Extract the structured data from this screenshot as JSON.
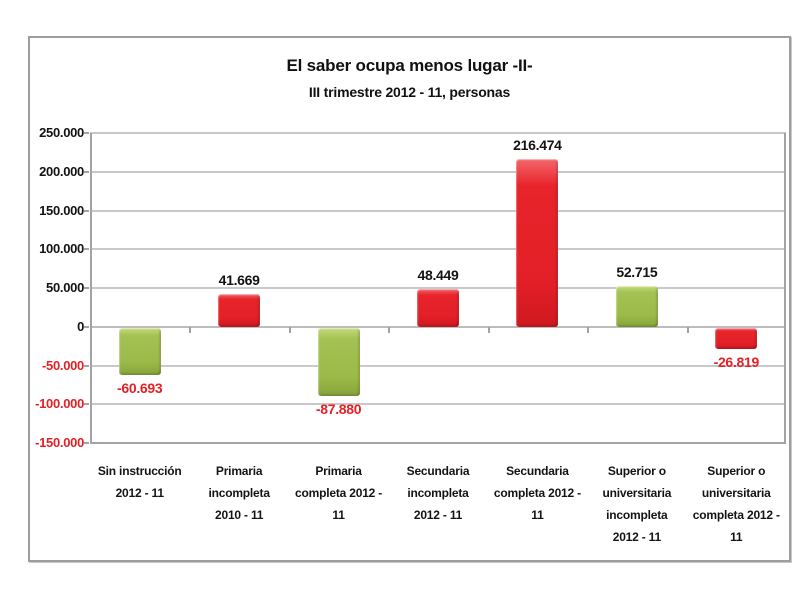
{
  "chart_data": {
    "type": "bar",
    "title": "El saber ocupa menos lugar -II-",
    "subtitle": "III trimestre 2012 - 11, personas",
    "categories": [
      "Sin instrucción 2012 - 11",
      "Primaria incompleta 2010 - 11",
      "Primaria completa 2012 - 11",
      "Secundaria incompleta 2012 - 11",
      "Secundaria completa 2012 - 11",
      "Superior o universitaria incompleta 2012 - 11",
      "Superior o universitaria completa 2012 - 11"
    ],
    "category_label_lines": [
      [
        "Sin instrucción",
        "2012 - 11"
      ],
      [
        "Primaria",
        "incompleta",
        "2010 - 11"
      ],
      [
        "Primaria",
        "completa 2012 -",
        "11"
      ],
      [
        "Secundaria",
        "incompleta",
        "2012 - 11"
      ],
      [
        "Secundaria",
        "completa 2012 -",
        "11"
      ],
      [
        "Superior o",
        "universitaria",
        "incompleta",
        "2012 - 11"
      ],
      [
        "Superior o",
        "universitaria",
        "completa 2012 -",
        "11"
      ]
    ],
    "values": [
      -60693,
      41669,
      -87880,
      48449,
      216474,
      52715,
      -26819
    ],
    "value_labels": [
      "-60.693",
      "41.669",
      "-87.880",
      "48.449",
      "216.474",
      "52.715",
      "-26.819"
    ],
    "bar_color_keys": [
      "green",
      "red",
      "green",
      "red",
      "red",
      "green",
      "red"
    ],
    "ylim": [
      -150000,
      250000
    ],
    "ytick_step": 50000,
    "ytick_values": [
      250000,
      200000,
      150000,
      100000,
      50000,
      0,
      -50000,
      -100000,
      -150000
    ],
    "ytick_labels": [
      "250.000",
      "200.000",
      "150.000",
      "100.000",
      "50.000",
      "0",
      "-50.000",
      "-100.000",
      "-150.000"
    ],
    "grid": true,
    "legend": "none",
    "xlabel": "",
    "ylabel": ""
  },
  "colors": {
    "bar_red": "#e31f27",
    "bar_green": "#9cba49",
    "negative_text": "#e32127",
    "positive_text": "#131313",
    "gridline": "#c9c9c9",
    "zero_line": "#bdbdbd",
    "axis": "#a3a3a3",
    "frame_border": "#9d9d9d",
    "background": "#ffffff"
  }
}
